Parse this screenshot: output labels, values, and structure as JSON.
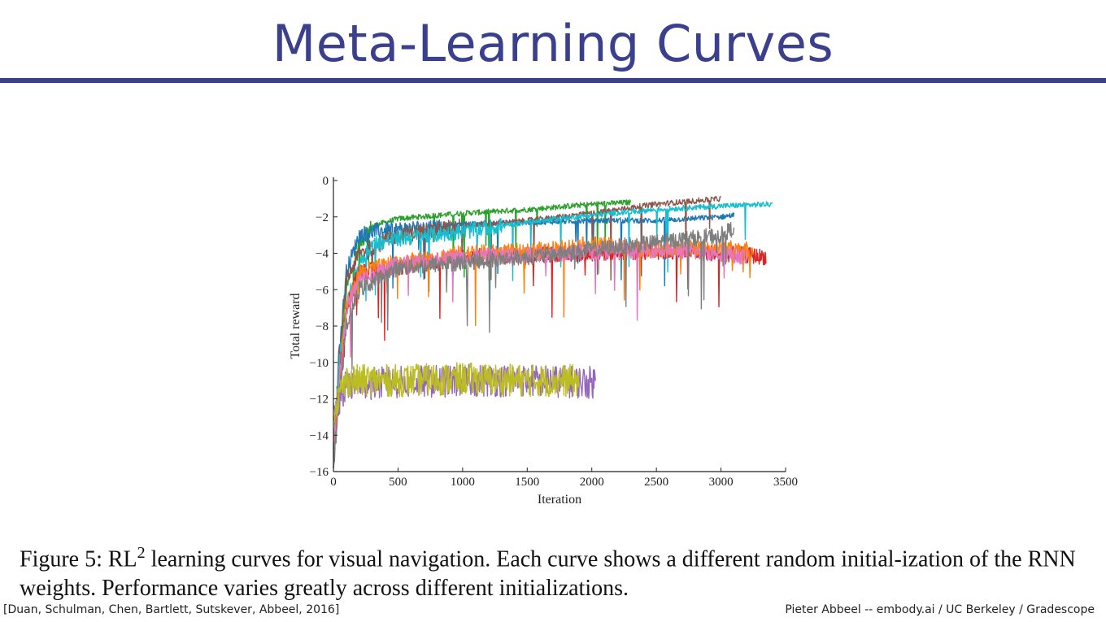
{
  "slide": {
    "title": "Meta-Learning Curves",
    "caption": {
      "prefix": "Figure 5: RL",
      "superscript": "2",
      "text": " learning curves for visual navigation. Each curve shows a different random initial-ization of the RNN weights. Performance varies greatly across different initializations."
    },
    "footer_left": "[Duan, Schulman, Chen, Bartlett, Sutskever, Abbeel, 2016]",
    "footer_right": "Pieter Abbeel -- embody.ai / UC Berkeley / Gradescope"
  },
  "chart_data": {
    "type": "line",
    "title": "",
    "xlabel": "Iteration",
    "ylabel": "Total reward",
    "xlim": [
      0,
      3500
    ],
    "ylim": [
      -16,
      0
    ],
    "xticks": [
      0,
      500,
      1000,
      1500,
      2000,
      2500,
      3000,
      3500
    ],
    "yticks": [
      0,
      -2,
      -4,
      -6,
      -8,
      -10,
      -12,
      -14,
      -16
    ],
    "grid": false,
    "legend": "none",
    "series": [
      {
        "color": "#2ca02c",
        "x": [
          0,
          50,
          100,
          200,
          300,
          500,
          1000,
          1500,
          2000,
          2300
        ],
        "y": [
          -15.5,
          -10,
          -6,
          -3.5,
          -2.5,
          -2.1,
          -1.8,
          -1.6,
          -1.3,
          -1.2
        ]
      },
      {
        "color": "#1f77b4",
        "x": [
          0,
          50,
          100,
          200,
          300,
          500,
          1000,
          1500,
          2000,
          2500,
          3000,
          3100
        ],
        "y": [
          -15,
          -9,
          -5,
          -3,
          -2.8,
          -2.7,
          -2.4,
          -2.3,
          -2.2,
          -2.2,
          -2.0,
          -1.9
        ]
      },
      {
        "color": "#8c564b",
        "x": [
          0,
          50,
          100,
          200,
          500,
          1000,
          1500,
          2000,
          2500,
          3000
        ],
        "y": [
          -15.5,
          -9.5,
          -5.5,
          -4,
          -3,
          -2.5,
          -2.2,
          -1.8,
          -1.3,
          -1.0
        ]
      },
      {
        "color": "#17becf",
        "x": [
          0,
          50,
          100,
          200,
          300,
          500,
          1000,
          1500,
          2000,
          2500,
          3000,
          3400
        ],
        "y": [
          -15,
          -10,
          -7,
          -4.5,
          -3.5,
          -3.2,
          -2.8,
          -2.3,
          -1.9,
          -1.6,
          -1.4,
          -1.3
        ]
      },
      {
        "color": "#d62728",
        "x": [
          0,
          100,
          200,
          500,
          1000,
          1500,
          2000,
          2500,
          3000,
          3350
        ],
        "y": [
          -15,
          -7,
          -5,
          -4.8,
          -4.2,
          -4.1,
          -4.0,
          -3.9,
          -4.0,
          -4.2
        ]
      },
      {
        "color": "#ff7f0e",
        "x": [
          0,
          100,
          200,
          500,
          1000,
          1500,
          2000,
          2500,
          3000,
          3250
        ],
        "y": [
          -15,
          -7,
          -5,
          -4.5,
          -4.0,
          -3.9,
          -3.5,
          -3.8,
          -3.7,
          -3.8
        ]
      },
      {
        "color": "#e377c2",
        "x": [
          0,
          100,
          200,
          500,
          1000,
          1500,
          2000,
          2500,
          3000,
          3200
        ],
        "y": [
          -15,
          -7,
          -5.5,
          -4.6,
          -4.2,
          -4.1,
          -3.9,
          -3.8,
          -4.0,
          -4.2
        ]
      },
      {
        "color": "#7f7f7f",
        "x": [
          0,
          100,
          200,
          500,
          1000,
          1500,
          2000,
          2500,
          3000,
          3100
        ],
        "y": [
          -15,
          -8,
          -6,
          -4.8,
          -4.5,
          -4.2,
          -3.8,
          -3.4,
          -3.0,
          -2.6
        ]
      },
      {
        "color": "#9467bd",
        "x": [
          0,
          100,
          500,
          1000,
          1500,
          2000,
          2030
        ],
        "y": [
          -13,
          -11.2,
          -11.1,
          -11.0,
          -11.0,
          -11.1,
          -11.0
        ]
      },
      {
        "color": "#bcbd22",
        "x": [
          0,
          100,
          500,
          1000,
          1500,
          1900
        ],
        "y": [
          -12.5,
          -11,
          -11.0,
          -10.9,
          -11.0,
          -11.0
        ]
      }
    ]
  }
}
